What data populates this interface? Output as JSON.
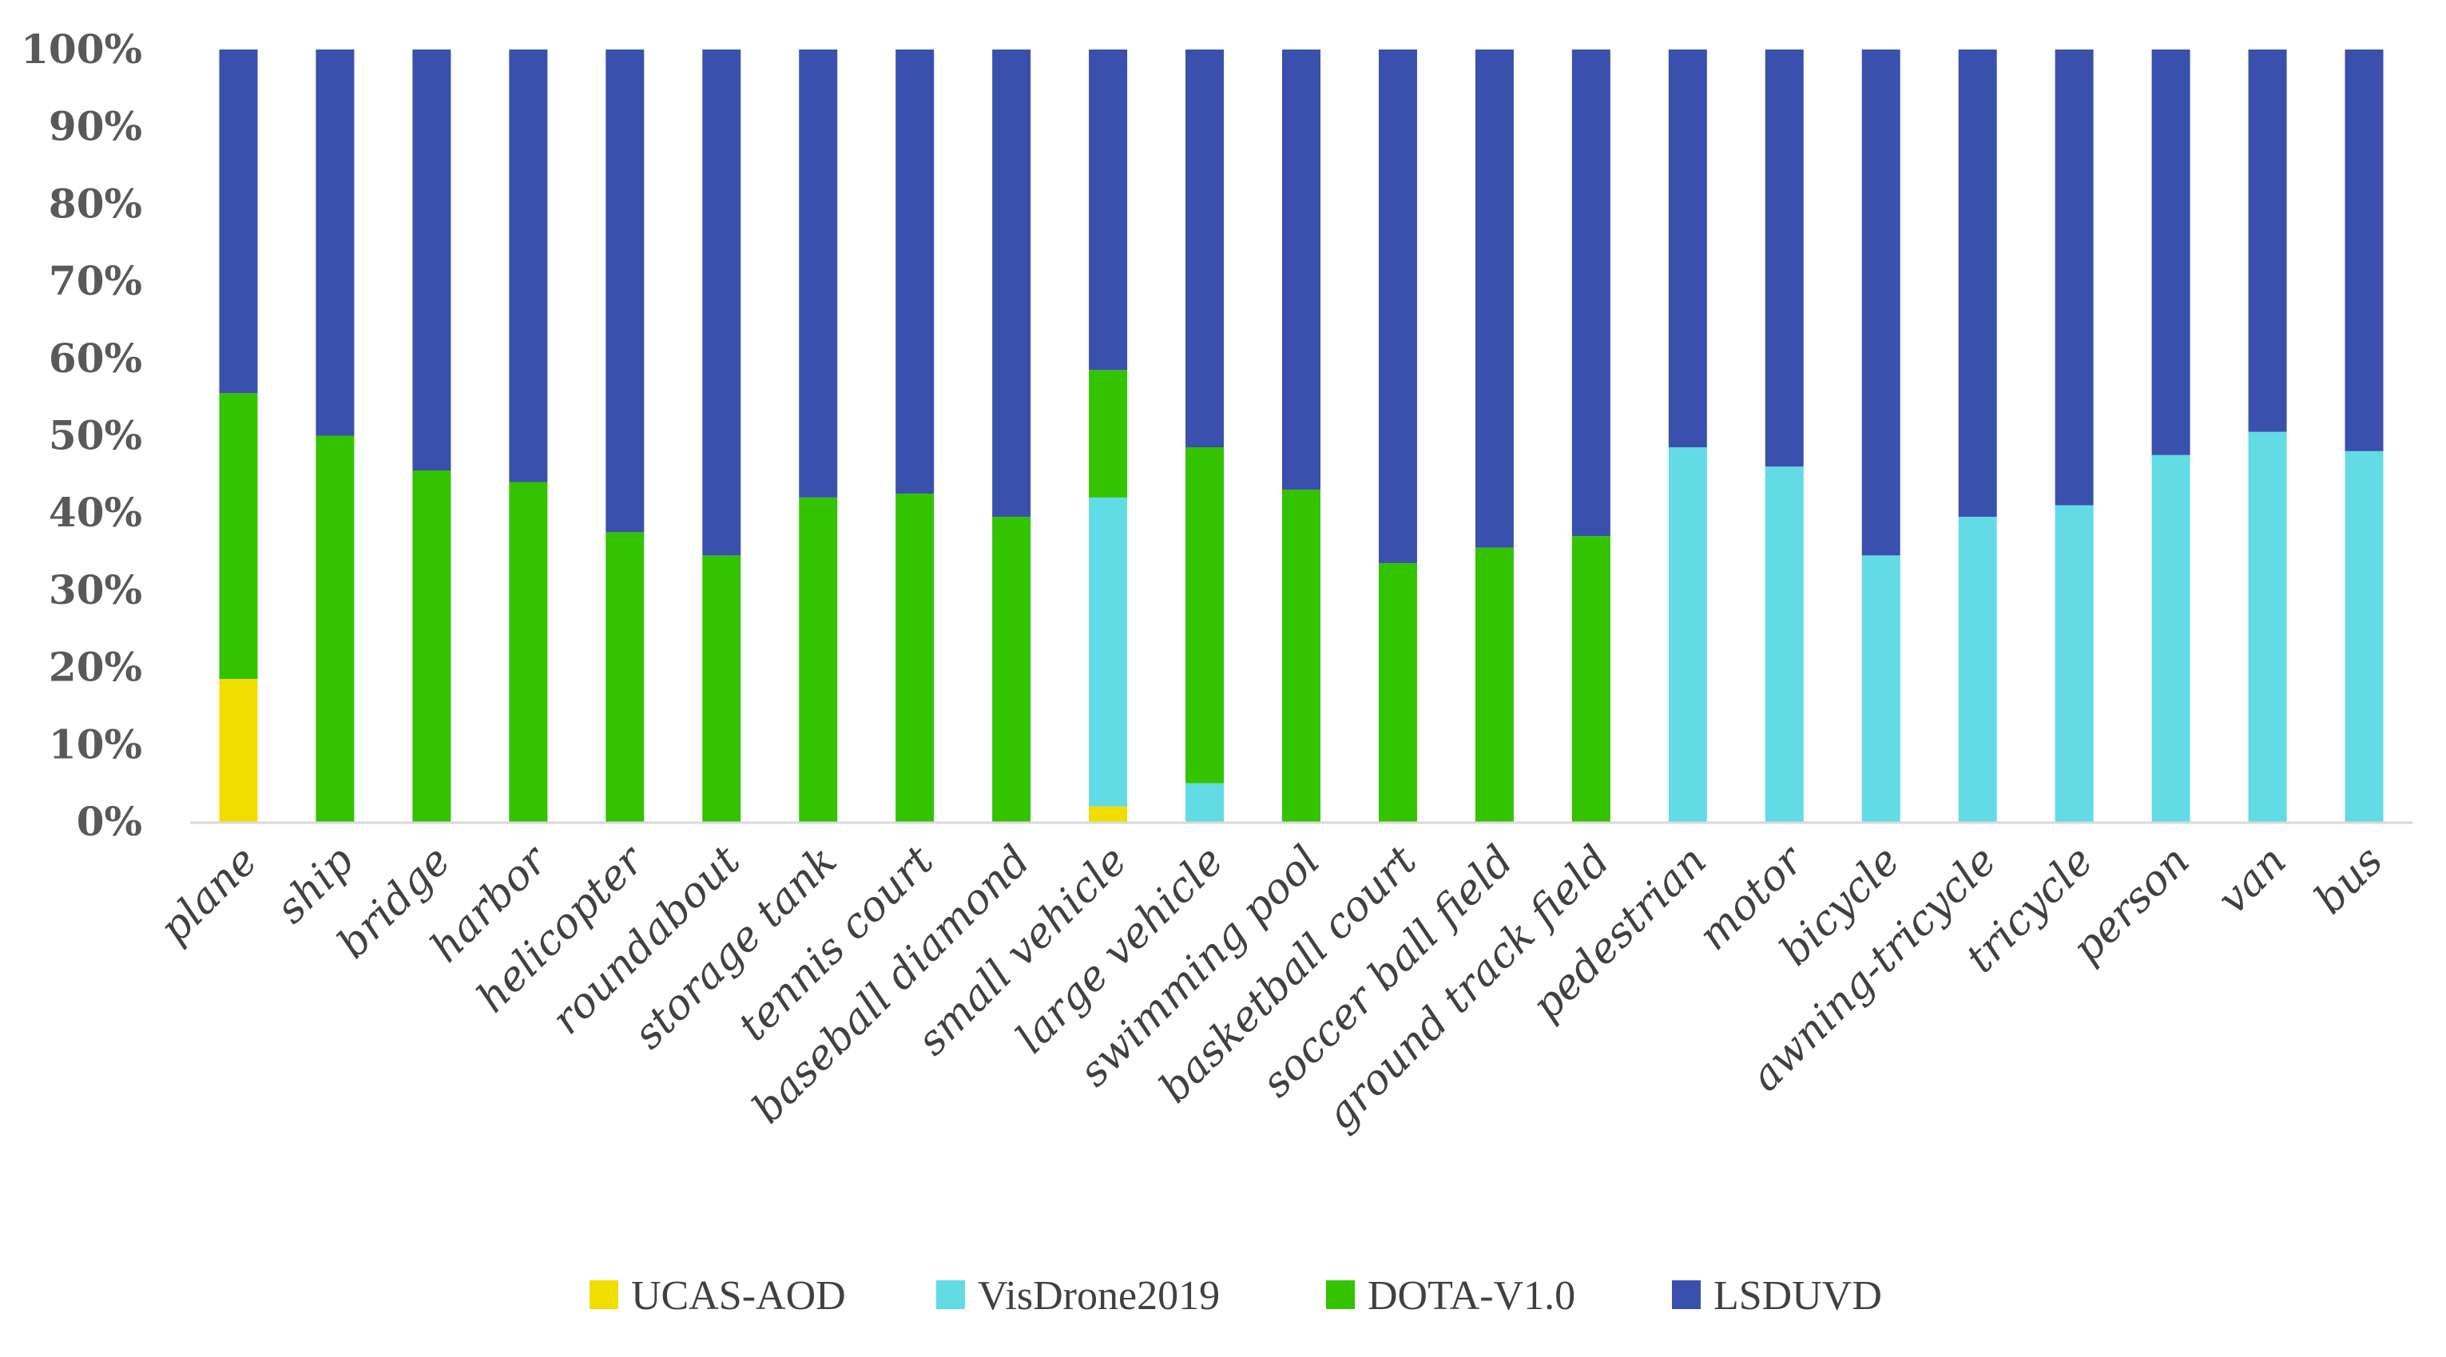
{
  "chart_data": {
    "type": "bar",
    "stacked": "percent",
    "title": "",
    "xlabel": "",
    "ylabel": "",
    "ylim": [
      0,
      100
    ],
    "yticks": [
      "0%",
      "10%",
      "20%",
      "30%",
      "40%",
      "50%",
      "60%",
      "70%",
      "80%",
      "90%",
      "100%"
    ],
    "legend_position": "bottom",
    "categories": [
      "plane",
      "ship",
      "bridge",
      "harbor",
      "helicopter",
      "roundabout",
      "storage tank",
      "tennis court",
      "baseball diamond",
      "small vehicle",
      "large vehicle",
      "swimming pool",
      "basketball court",
      "soccer ball field",
      "ground track field",
      "pedestrian",
      "motor",
      "bicycle",
      "awning-tricycle",
      "tricycle",
      "person",
      "van",
      "bus"
    ],
    "series": [
      {
        "name": "UCAS-AOD",
        "color": "#f2dd00",
        "values": [
          18.5,
          0,
          0,
          0,
          0,
          0,
          0,
          0,
          0,
          2,
          0,
          0,
          0,
          0,
          0,
          0,
          0,
          0,
          0,
          0,
          0,
          0,
          0
        ]
      },
      {
        "name": "VisDrone2019",
        "color": "#62dbe4",
        "values": [
          0,
          0,
          0,
          0,
          0,
          0,
          0,
          0,
          0,
          40,
          5,
          0,
          0,
          0,
          0,
          48.5,
          46,
          34.5,
          39.5,
          41,
          47.5,
          50.5,
          48
        ]
      },
      {
        "name": "DOTA-V1.0",
        "color": "#33c300",
        "values": [
          37,
          50,
          45.5,
          44,
          37.5,
          34.5,
          42,
          42.5,
          39.5,
          16.5,
          43.5,
          43,
          33.5,
          35.5,
          37,
          0,
          0,
          0,
          0,
          0,
          0,
          0,
          0
        ]
      },
      {
        "name": "LSDUVD",
        "color": "#3a50ad",
        "values": [
          44.5,
          50,
          54.5,
          56,
          62.5,
          65.5,
          58,
          57.5,
          60.5,
          41.5,
          51.5,
          57,
          66.5,
          64.5,
          63,
          51.5,
          54,
          65.5,
          60.5,
          59,
          52.5,
          49.5,
          52
        ]
      }
    ]
  }
}
